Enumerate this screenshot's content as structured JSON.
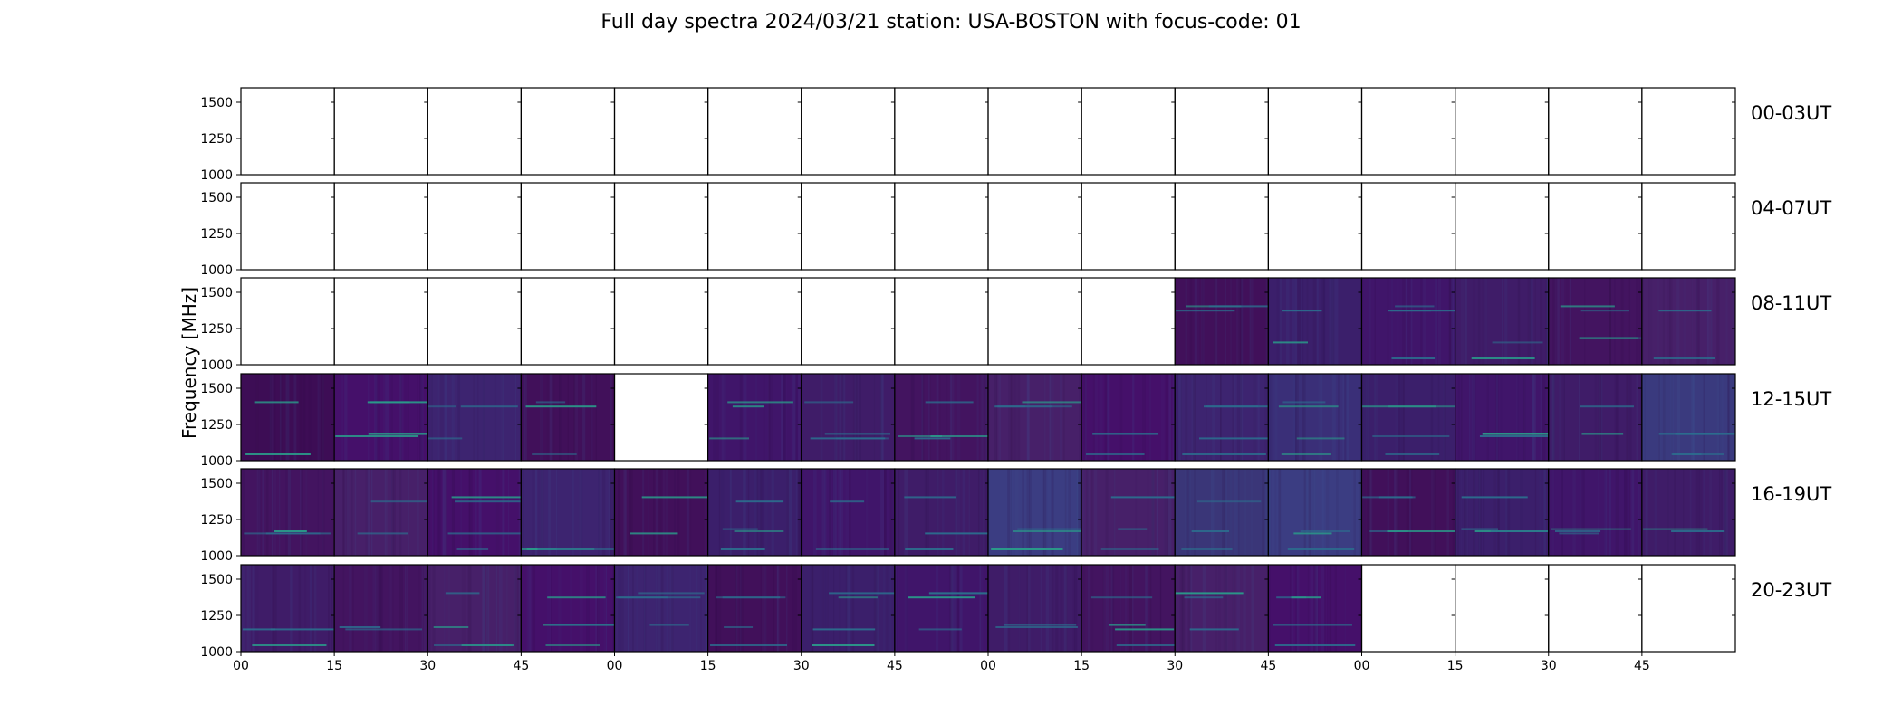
{
  "chart_data": {
    "type": "heatmap",
    "title": "Full day spectra 2024/03/21 station: USA-BOSTON with focus-code: 01",
    "ylabel": "Frequency [MHz]",
    "ylim": [
      1000,
      1600
    ],
    "yticks": [
      "1500",
      "1250",
      "1000"
    ],
    "xticks": [
      "00",
      "15",
      "30",
      "45",
      "00",
      "15",
      "30",
      "45",
      "00",
      "15",
      "30",
      "45",
      "00",
      "15",
      "30",
      "45"
    ],
    "colormap": "viridis",
    "rows": [
      {
        "label": "00-03UT",
        "panels": [
          0,
          0,
          0,
          0,
          0,
          0,
          0,
          0,
          0,
          0,
          0,
          0,
          0,
          0,
          0,
          0
        ]
      },
      {
        "label": "04-07UT",
        "panels": [
          0,
          0,
          0,
          0,
          0,
          0,
          0,
          0,
          0,
          0,
          0,
          0,
          0,
          0,
          0,
          0
        ]
      },
      {
        "label": "08-11UT",
        "panels": [
          0,
          0,
          0,
          0,
          0,
          0,
          0,
          0,
          0,
          0,
          1,
          1,
          1,
          1,
          1,
          1
        ]
      },
      {
        "label": "12-15UT",
        "panels": [
          1,
          1,
          1,
          1,
          0,
          1,
          1,
          1,
          1,
          1,
          1,
          1,
          1,
          1,
          1,
          1
        ]
      },
      {
        "label": "16-19UT",
        "panels": [
          1,
          1,
          1,
          1,
          1,
          1,
          1,
          1,
          1,
          1,
          1,
          1,
          1,
          1,
          1,
          1
        ]
      },
      {
        "label": "20-23UT",
        "panels": [
          1,
          1,
          1,
          1,
          1,
          1,
          1,
          1,
          1,
          1,
          1,
          1,
          0,
          0,
          0,
          0
        ]
      }
    ]
  }
}
